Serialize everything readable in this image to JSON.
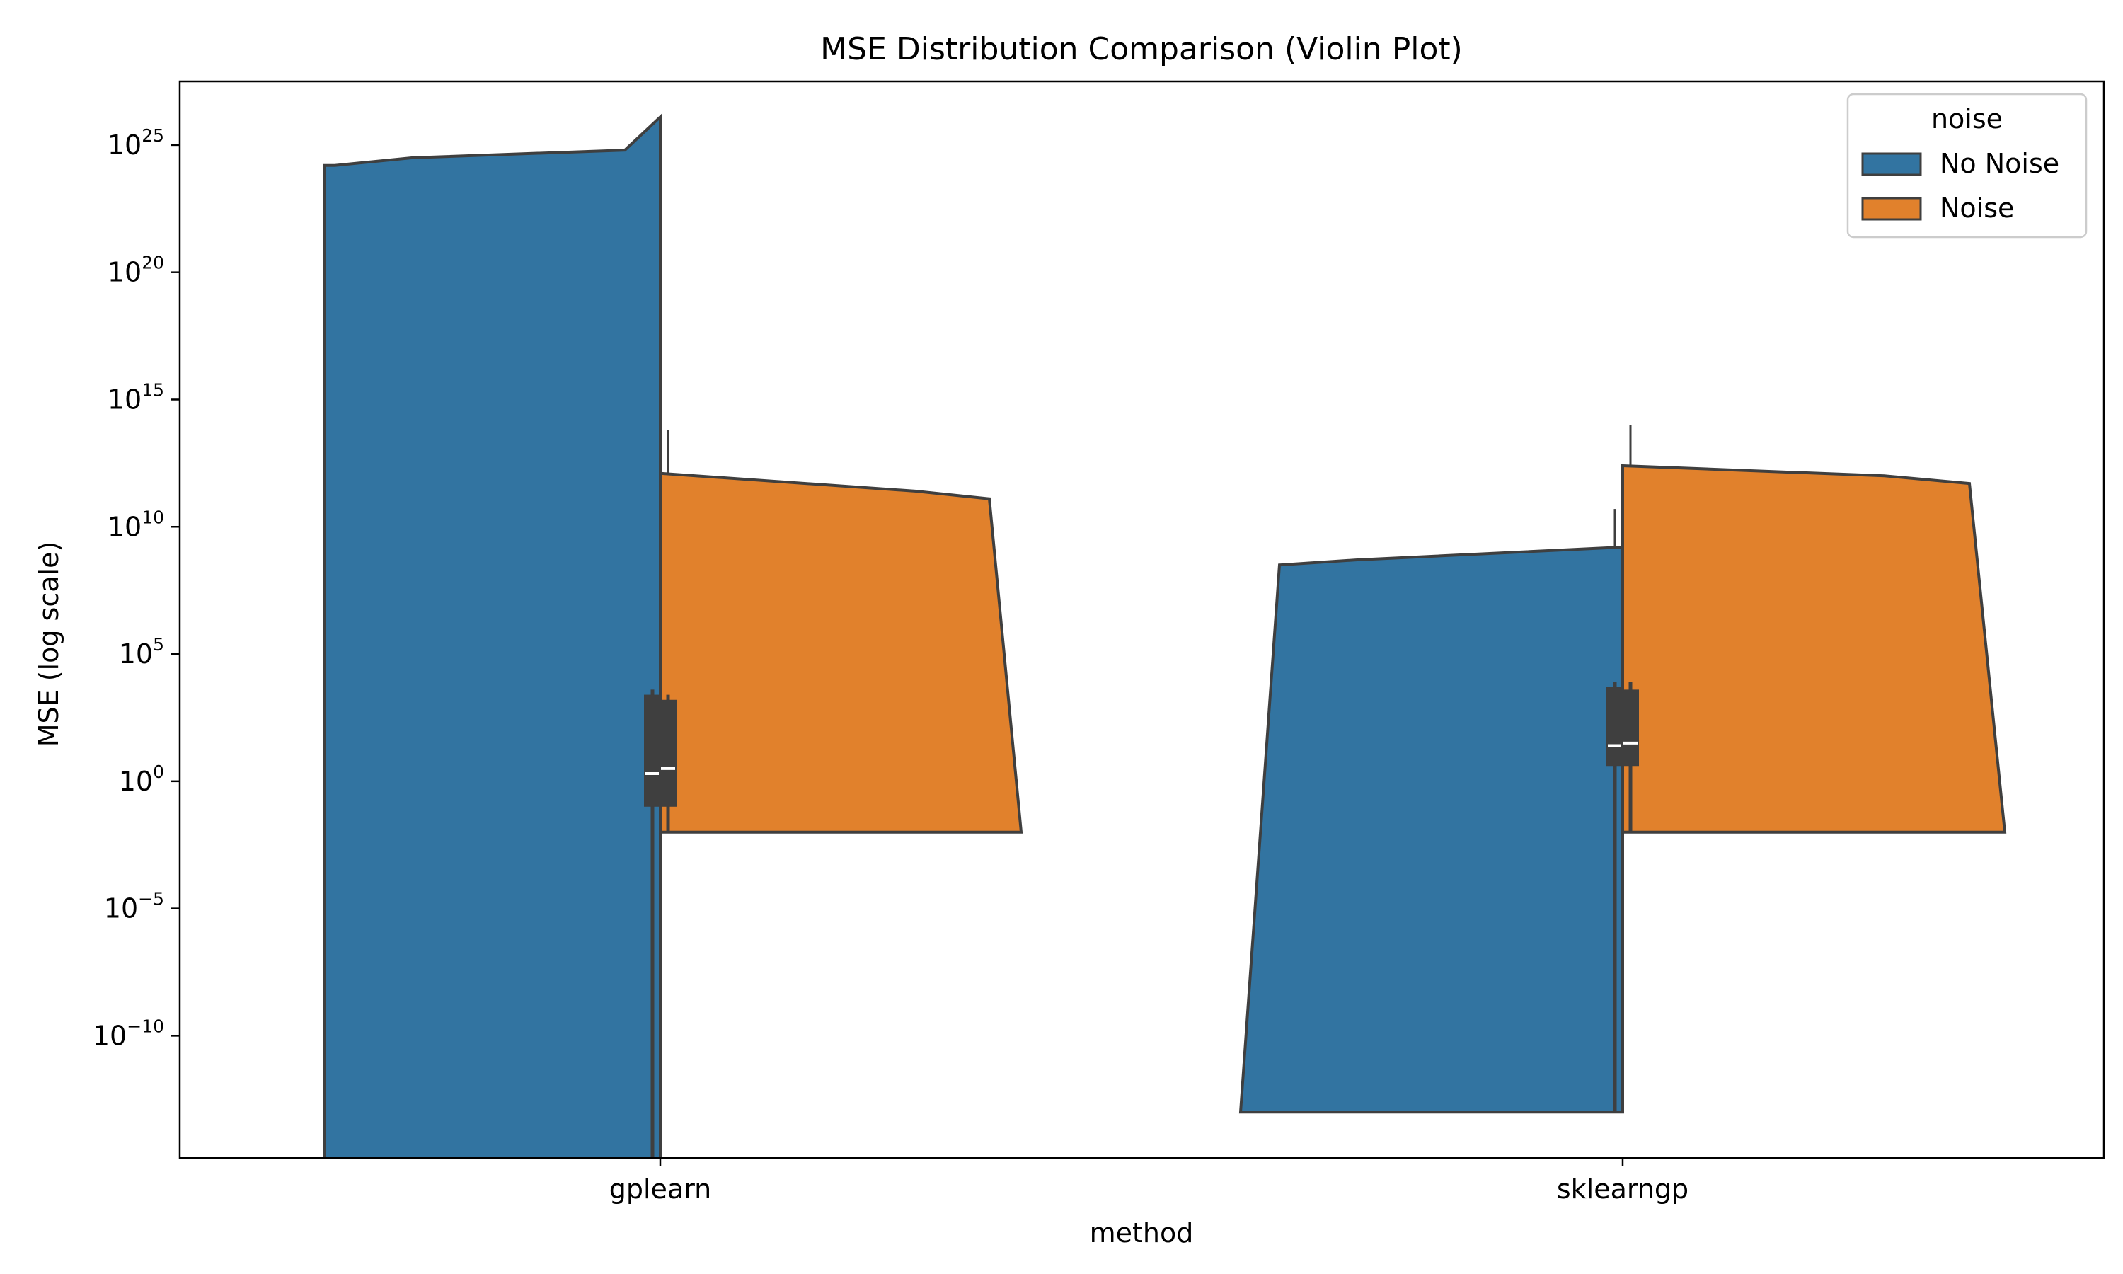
{
  "chart_data": {
    "type": "violin",
    "title": "MSE Distribution Comparison (Violin Plot)",
    "xlabel": "method",
    "ylabel": "MSE (log scale)",
    "yscale": "log",
    "ylim_log10": [
      -14.8,
      27.5
    ],
    "categories": [
      "gplearn",
      "sklearngp"
    ],
    "yticks": [
      {
        "base": "10",
        "exp": "25",
        "log10": 25
      },
      {
        "base": "10",
        "exp": "20",
        "log10": 20
      },
      {
        "base": "10",
        "exp": "15",
        "log10": 15
      },
      {
        "base": "10",
        "exp": "10",
        "log10": 10
      },
      {
        "base": "10",
        "exp": "5",
        "log10": 5
      },
      {
        "base": "10",
        "exp": "0",
        "log10": 0
      },
      {
        "base": "10",
        "exp": "−5",
        "log10": -5
      },
      {
        "base": "10",
        "exp": "−10",
        "log10": -10
      }
    ],
    "legend": {
      "title": "noise",
      "placement": "top-right",
      "entries": [
        {
          "label": "No Noise",
          "color": "#3274a1"
        },
        {
          "label": "Noise",
          "color": "#e1812c"
        }
      ]
    },
    "split": true,
    "violins": [
      {
        "category": "gplearn",
        "hue": "No Noise",
        "side": "left",
        "color": "#3274a1",
        "outline": [
          [
            24.2,
            0.92
          ],
          [
            24.5,
            0.7
          ],
          [
            24.8,
            0.1
          ],
          [
            26.1,
            0.0
          ],
          [
            -14.8,
            0.0
          ],
          [
            -14.8,
            0.95
          ],
          [
            24.2,
            0.95
          ]
        ],
        "box": {
          "q1": -1.0,
          "median": 0.3,
          "q3": 3.4
        },
        "whisker_low": -14.8,
        "whisker_high": 3.6
      },
      {
        "category": "gplearn",
        "hue": "Noise",
        "side": "right",
        "color": "#e1812c",
        "outline": [
          [
            12.1,
            0.0
          ],
          [
            11.4,
            0.72
          ],
          [
            11.1,
            0.93
          ],
          [
            -2.0,
            1.02
          ],
          [
            -2.0,
            0.0
          ]
        ],
        "box": {
          "q1": -1.0,
          "median": 0.5,
          "q3": 3.2
        },
        "whisker_low": -2.0,
        "whisker_high": 3.4,
        "whisker_top": 13.8
      },
      {
        "category": "sklearngp",
        "hue": "No Noise",
        "side": "left",
        "color": "#3274a1",
        "outline": [
          [
            9.2,
            0.0
          ],
          [
            8.7,
            0.75
          ],
          [
            8.5,
            0.97
          ],
          [
            -13.0,
            1.08
          ],
          [
            -13.0,
            0.0
          ]
        ],
        "box": {
          "q1": 0.6,
          "median": 1.4,
          "q3": 3.7
        },
        "whisker_low": -13.0,
        "whisker_high": 3.9,
        "whisker_top": 10.7
      },
      {
        "category": "sklearngp",
        "hue": "Noise",
        "side": "right",
        "color": "#e1812c",
        "outline": [
          [
            12.4,
            0.0
          ],
          [
            12.0,
            0.74
          ],
          [
            11.7,
            0.98
          ],
          [
            -2.0,
            1.08
          ],
          [
            -2.0,
            0.0
          ]
        ],
        "box": {
          "q1": 0.6,
          "median": 1.5,
          "q3": 3.6
        },
        "whisker_low": -2.0,
        "whisker_high": 3.9,
        "whisker_top": 14.0
      }
    ]
  }
}
